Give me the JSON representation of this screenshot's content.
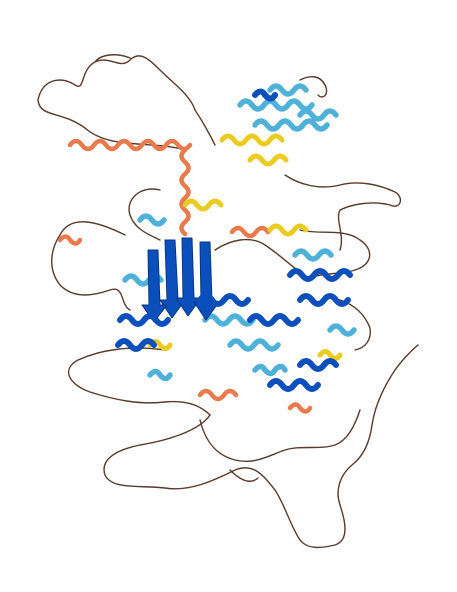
{
  "colors": {
    "very_high": "#0b4fbd",
    "confident": "#4fb0d8",
    "low": "#e9cc1f",
    "very_low": "#e87a4b",
    "loop_dark": "#5a3a2a",
    "background": "#ffffff"
  },
  "scene": {
    "subject": "protein-ribbon-structure"
  }
}
